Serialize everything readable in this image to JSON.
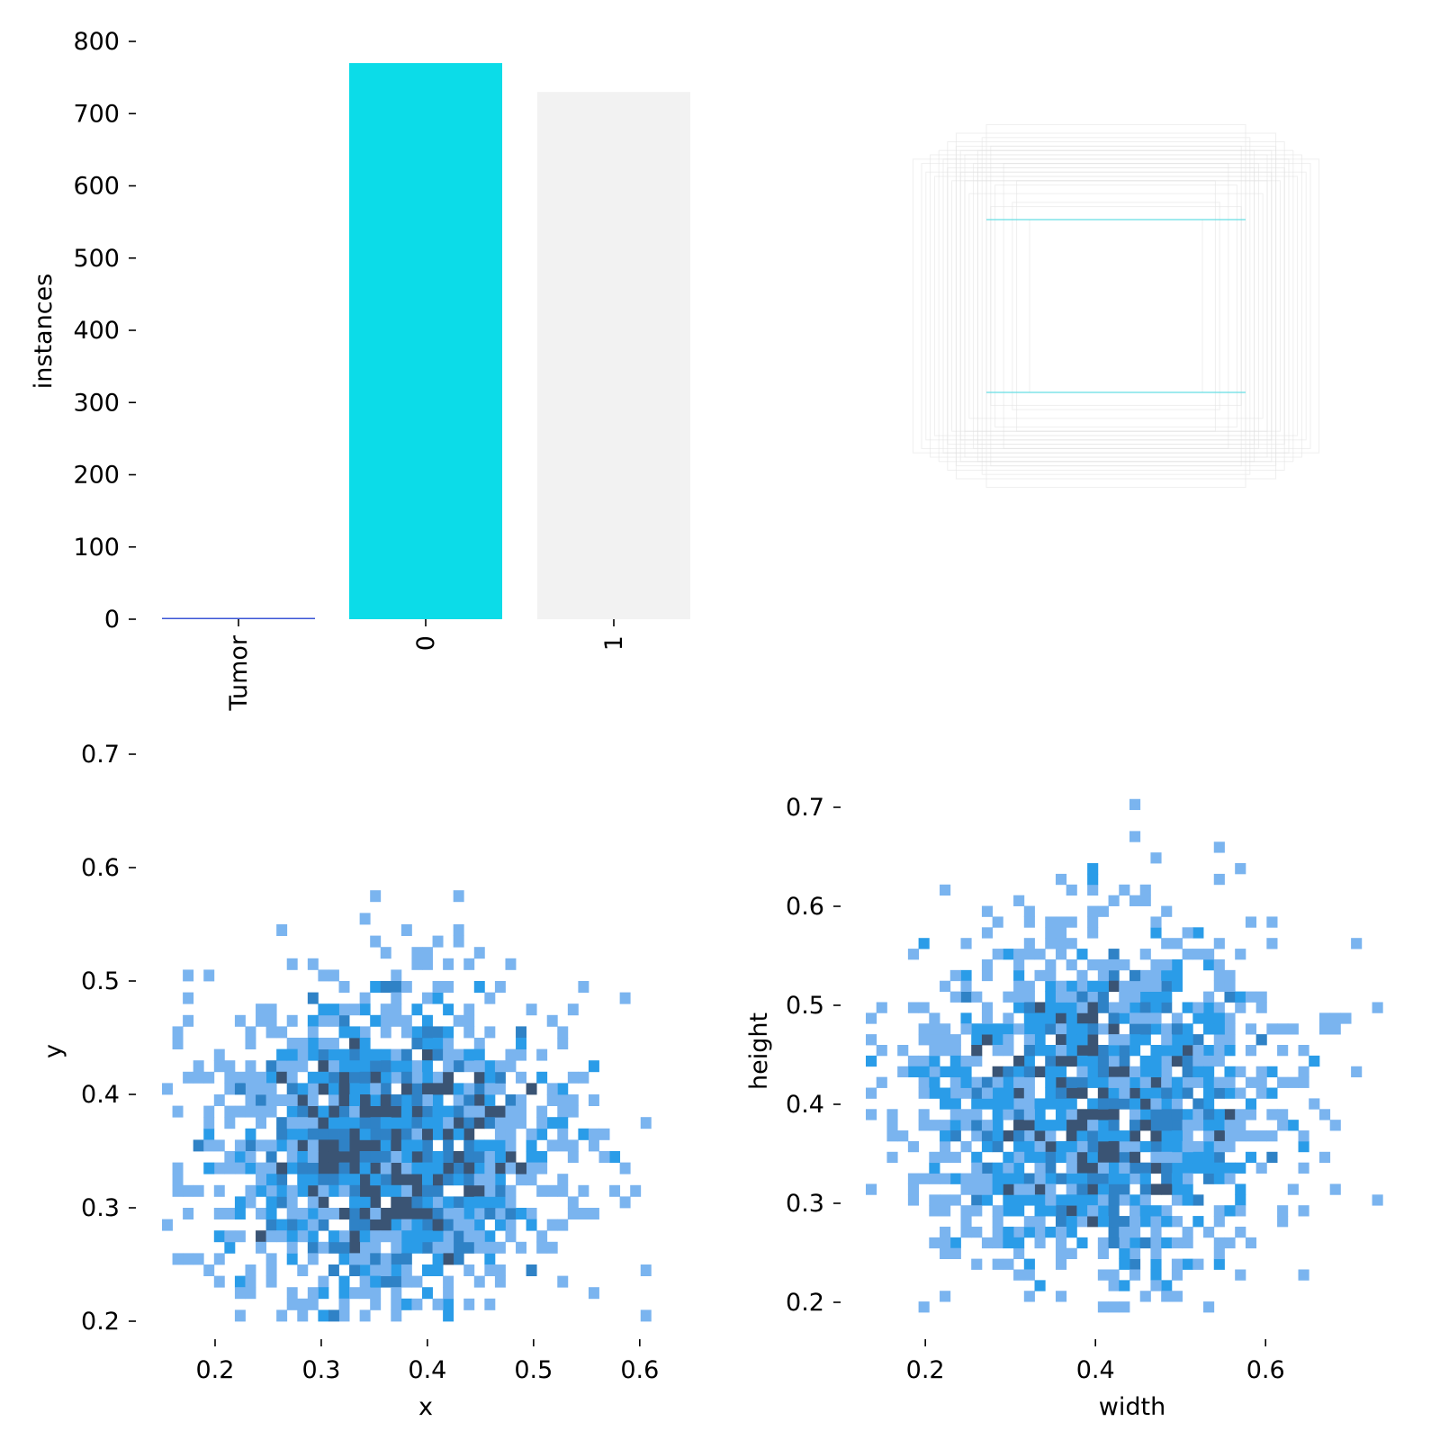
{
  "colors": {
    "bar_tumor": "#3b56d6",
    "bar_0": "#0cdce8",
    "bar_1": "#f2f2f2",
    "box_outline": "#e2e2e2",
    "box_highlight": "#66dde3",
    "hist_light": "#7ab4ef",
    "hist_mid": "#2a9ce8",
    "hist_dark": "#2f82c6",
    "hist_darkest": "#3a5474"
  },
  "chart_data": [
    {
      "type": "bar",
      "categories": [
        "Tumor",
        "0",
        "1"
      ],
      "values": [
        0,
        770,
        730
      ],
      "ylabel": "instances",
      "ylim": [
        0,
        800
      ],
      "yticks": [
        0,
        100,
        200,
        300,
        400,
        500,
        600,
        700,
        800
      ],
      "ytick_labels": [
        "0",
        "100",
        "200",
        "300",
        "400",
        "500",
        "600",
        "700",
        "800"
      ],
      "grid": false
    },
    {
      "type": "box-overlay",
      "center": [
        0.5,
        0.5
      ],
      "boxes_wh": [
        [
          0.74,
          0.74
        ],
        [
          0.78,
          0.64
        ],
        [
          0.62,
          0.78
        ],
        [
          0.7,
          0.7
        ],
        [
          0.84,
          0.6
        ],
        [
          0.6,
          0.84
        ],
        [
          0.76,
          0.58
        ],
        [
          0.66,
          0.66
        ],
        [
          0.58,
          0.74
        ],
        [
          0.8,
          0.68
        ],
        [
          0.72,
          0.62
        ],
        [
          0.64,
          0.72
        ],
        [
          0.88,
          0.62
        ],
        [
          0.56,
          0.56
        ],
        [
          0.52,
          0.66
        ],
        [
          0.68,
          0.52
        ],
        [
          0.82,
          0.72
        ],
        [
          0.74,
          0.8
        ],
        [
          0.6,
          0.6
        ],
        [
          0.9,
          0.66
        ],
        [
          0.48,
          0.48
        ],
        [
          0.86,
          0.7
        ],
        [
          0.7,
          0.58
        ],
        [
          0.64,
          0.64
        ],
        [
          0.4,
          0.4
        ],
        [
          0.78,
          0.76
        ],
        [
          0.46,
          0.58
        ],
        [
          0.94,
          0.68
        ],
        [
          0.58,
          0.46
        ],
        [
          0.72,
          0.72
        ]
      ],
      "highlight_lines_y": [
        0.3,
        0.7
      ],
      "highlight_span_x": [
        0.2,
        0.8
      ]
    },
    {
      "type": "heatmap",
      "xlabel": "x",
      "ylabel": "y",
      "xlim": [
        0.15,
        0.64
      ],
      "ylim": [
        0.2,
        0.7
      ],
      "xticks": [
        0.2,
        0.3,
        0.4,
        0.5,
        0.6
      ],
      "xtick_labels": [
        "0.2",
        "0.3",
        "0.4",
        "0.5",
        "0.6"
      ],
      "yticks": [
        0.2,
        0.3,
        0.4,
        0.5,
        0.6,
        0.7
      ],
      "ytick_labels": [
        "0.2",
        "0.3",
        "0.4",
        "0.5",
        "0.6",
        "0.7"
      ],
      "bin_w": 0.0098,
      "bin_h": 0.01,
      "cluster": {
        "cx": 0.36,
        "cy": 0.35,
        "sx": 0.085,
        "sy": 0.075,
        "n": 1500
      },
      "seed": 12345
    },
    {
      "type": "heatmap",
      "xlabel": "width",
      "ylabel": "height",
      "xlim": [
        0.13,
        0.75
      ],
      "ylim": [
        0.19,
        0.73
      ],
      "xticks": [
        0.2,
        0.4,
        0.6
      ],
      "xtick_labels": [
        "0.2",
        "0.4",
        "0.6"
      ],
      "yticks": [
        0.2,
        0.3,
        0.4,
        0.5,
        0.6,
        0.7
      ],
      "ytick_labels": [
        "0.2",
        "0.3",
        "0.4",
        "0.5",
        "0.6",
        "0.7"
      ],
      "bin_w": 0.0124,
      "bin_h": 0.0108,
      "cluster": {
        "cx": 0.4,
        "cy": 0.4,
        "sx": 0.11,
        "sy": 0.09,
        "n": 1500
      },
      "seed": 67890
    }
  ]
}
